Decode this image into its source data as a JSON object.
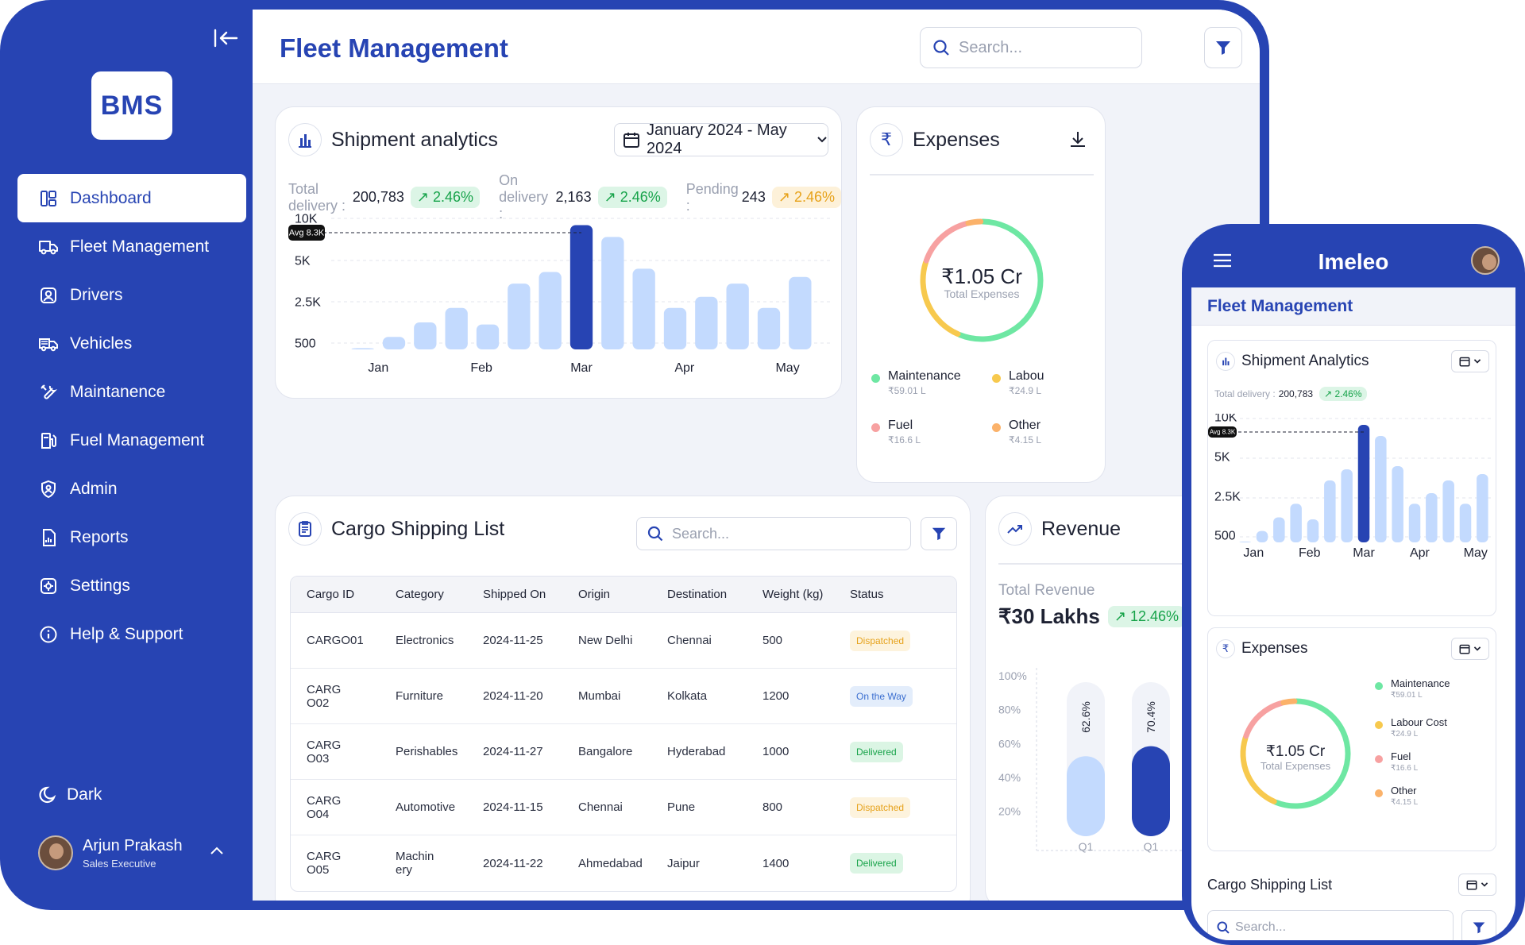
{
  "sidebar": {
    "logo": "BMS",
    "items": [
      {
        "label": "Dashboard",
        "icon": "dashboard-icon"
      },
      {
        "label": "Fleet Management",
        "icon": "truck-icon"
      },
      {
        "label": "Drivers",
        "icon": "driver-icon"
      },
      {
        "label": "Vehicles",
        "icon": "vehicles-icon"
      },
      {
        "label": "Maintanence",
        "icon": "tools-icon"
      },
      {
        "label": "Fuel Management",
        "icon": "fuel-icon"
      },
      {
        "label": "Admin",
        "icon": "shield-icon"
      },
      {
        "label": "Reports",
        "icon": "report-icon"
      },
      {
        "label": "Settings",
        "icon": "gear-icon"
      },
      {
        "label": "Help & Support",
        "icon": "info-icon"
      }
    ],
    "theme_toggle": "Dark",
    "user": {
      "name": "Arjun Prakash",
      "role": "Sales Executive"
    }
  },
  "header": {
    "title": "Fleet Management",
    "search_placeholder": "Search..."
  },
  "shipment": {
    "title": "Shipment analytics",
    "date_range": "January 2024 - May 2024",
    "stats": [
      {
        "label": "Total delivery :",
        "value": "200,783",
        "change": "2.46%",
        "trend": "up"
      },
      {
        "label": "On delivery :",
        "value": "2,163",
        "change": "2.46%",
        "trend": "up"
      },
      {
        "label": "Pending :",
        "value": "243",
        "change": "2.46%",
        "trend": "warn"
      }
    ],
    "avg_label": "Avg 8.3K"
  },
  "chart_data": [
    {
      "type": "bar",
      "title": "Shipment analytics",
      "x_tick_labels": [
        "Jan",
        "Feb",
        "Mar",
        "Apr",
        "May"
      ],
      "y_tick_labels": [
        "10K",
        "5K",
        "2.5K",
        "500"
      ],
      "values": [
        300,
        800,
        1500,
        2200,
        1400,
        3600,
        4300,
        9200,
        7800,
        4500,
        2200,
        2800,
        3600,
        2200,
        4000
      ],
      "highlight_index": 7,
      "reference_line": {
        "value": 8300,
        "label": "Avg 8.3K"
      },
      "colors": {
        "bar": "#c3dafe",
        "highlight": "#2744b3"
      }
    },
    {
      "type": "bar",
      "title": "Revenue",
      "categories": [
        "Q1",
        "Q1"
      ],
      "values": [
        62.6,
        70.4
      ],
      "value_labels": [
        "62.6%",
        "70.4%"
      ],
      "y_tick_labels": [
        "100%",
        "80%",
        "60%",
        "40%",
        "20%"
      ],
      "ylim": [
        0,
        100
      ],
      "colors": [
        "#c3dafe",
        "#2744b3"
      ]
    },
    {
      "type": "pie",
      "title": "Expenses",
      "center_value": "₹1.05 Cr",
      "center_label": "Total Expenses",
      "labels": [
        "Maintenance",
        "Labour Cost",
        "Fuel",
        "Other"
      ],
      "values": [
        59.01,
        24.9,
        16.6,
        4.15
      ],
      "value_labels": [
        "₹59.01 L",
        "₹24.9 L",
        "₹16.6 L",
        "₹4.15 L"
      ],
      "colors": [
        "#6ee7a3",
        "#f7c94e",
        "#f7a1a1",
        "#fbb26a"
      ]
    }
  ],
  "expenses": {
    "title": "Expenses",
    "total": "₹1.05 Cr",
    "total_label": "Total Expenses",
    "items": [
      {
        "label": "Maintenance",
        "value": "₹59.01 L",
        "color": "#6ee7a3"
      },
      {
        "label": "Labou",
        "value": "₹24.9 L",
        "color": "#f7c94e"
      },
      {
        "label": "Fuel",
        "value": "₹16.6 L",
        "color": "#f7a1a1"
      },
      {
        "label": "Other",
        "value": "₹4.15 L",
        "color": "#fbb26a"
      }
    ]
  },
  "cargo": {
    "title": "Cargo Shipping List",
    "search_placeholder": "Search...",
    "columns": [
      "Cargo ID",
      "Category",
      "Shipped On",
      "Origin",
      "Destination",
      "Weight (kg)",
      "Status"
    ],
    "rows": [
      [
        "CARGO01",
        "Electronics",
        "2024-11-25",
        "New Delhi",
        "Chennai",
        "500",
        "Dispatched"
      ],
      [
        "CARG O02",
        "Furniture",
        "2024-11-20",
        "Mumbai",
        "Kolkata",
        "1200",
        "On the Way"
      ],
      [
        "CARG O03",
        "Perishables",
        "2024-11-27",
        "Bangalore",
        "Hyderabad",
        "1000",
        "Delivered"
      ],
      [
        "CARG O04",
        "Automotive",
        "2024-11-15",
        "Chennai",
        "Pune",
        "800",
        "Dispatched"
      ],
      [
        "CARG O05",
        "Machin ery",
        "2024-11-22",
        "Ahmedabad",
        "Jaipur",
        "1400",
        "Delivered"
      ]
    ]
  },
  "revenue": {
    "title": "Revenue",
    "label": "Total Revenue",
    "value": "₹30 Lakhs",
    "change": "12.46%"
  },
  "mobile": {
    "app_name": "Imeleo",
    "page_title": "Fleet Management",
    "shipment_title": "Shipment Analytics",
    "stat_label": "Total delivery :",
    "stat_value": "200,783",
    "stat_change": "2.46%",
    "avg_label": "Avg 8.3K",
    "y_ticks": [
      "10K",
      "5K",
      "2.5K",
      "500"
    ],
    "x_ticks": [
      "Jan",
      "Feb",
      "Mar",
      "Apr",
      "May"
    ],
    "expenses_title": "Expenses",
    "expenses_total": "₹1.05 Cr",
    "expenses_label": "Total Expenses",
    "expense_items": [
      {
        "label": "Maintenance",
        "value": "₹59.01 L",
        "color": "#6ee7a3"
      },
      {
        "label": "Labour Cost",
        "value": "₹24.9 L",
        "color": "#f7c94e"
      },
      {
        "label": "Fuel",
        "value": "₹16.6 L",
        "color": "#f7a1a1"
      },
      {
        "label": "Other",
        "value": "₹4.15 L",
        "color": "#fbb26a"
      }
    ],
    "cargo_title": "Cargo Shipping List",
    "search_placeholder": "Search..."
  }
}
